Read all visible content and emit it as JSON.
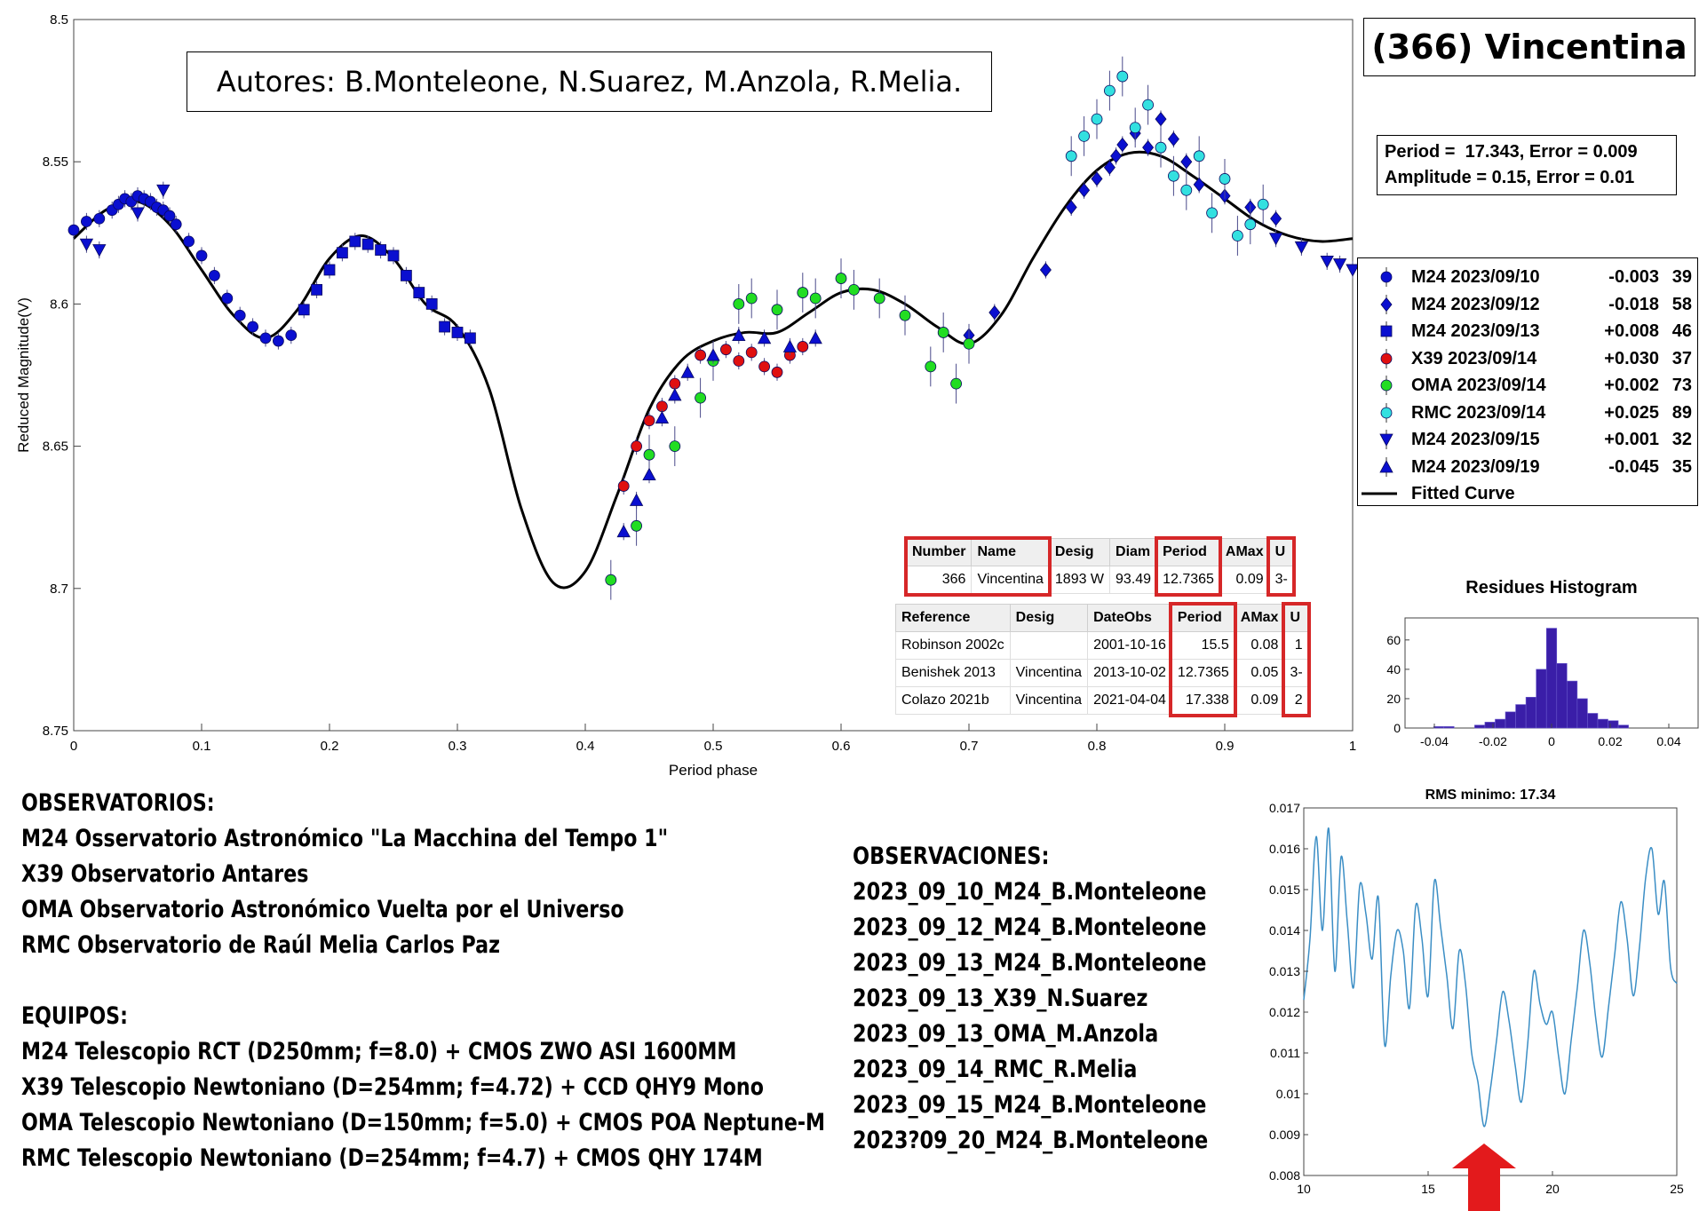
{
  "authors": "Autores: B.Monteleone, N.Suarez, M.Anzola, R.Melia.",
  "asteroid_title": "(366) Vincentina",
  "fit_box": {
    "line1": "Period =  17.343, Error = 0.009",
    "line2": "Amplitude = 0.15, Error = 0.01"
  },
  "legend": [
    {
      "label": "M24 2023/09/10",
      "offset": "-0.003",
      "count": "39",
      "marker": "circle",
      "color": "#0a0fd0"
    },
    {
      "label": "M24 2023/09/12",
      "offset": "-0.018",
      "count": "58",
      "marker": "diamond",
      "color": "#0a0fd0"
    },
    {
      "label": "M24 2023/09/13",
      "offset": "+0.008",
      "count": "46",
      "marker": "square",
      "color": "#0a0fd0"
    },
    {
      "label": "X39 2023/09/14",
      "offset": "+0.030",
      "count": "37",
      "marker": "circle",
      "color": "#e01010"
    },
    {
      "label": "OMA 2023/09/14",
      "offset": "+0.002",
      "count": "73",
      "marker": "circle",
      "color": "#22dd22"
    },
    {
      "label": "RMC 2023/09/14",
      "offset": "+0.025",
      "count": "89",
      "marker": "circle",
      "color": "#33e0e0"
    },
    {
      "label": "M24 2023/09/15",
      "offset": "+0.001",
      "count": "32",
      "marker": "triangle-down",
      "color": "#0a0fd0"
    },
    {
      "label": "M24 2023/09/19",
      "offset": "-0.045",
      "count": "35",
      "marker": "triangle-up",
      "color": "#0a0fd0"
    },
    {
      "label": "Fitted Curve",
      "offset": "",
      "count": "",
      "marker": "line",
      "color": "#000000"
    }
  ],
  "lcdb_table": {
    "headers": [
      "Number",
      "Name",
      "Desig",
      "Diam",
      "Period",
      "AMax",
      "U"
    ],
    "row": [
      "366",
      "Vincentina",
      "1893 W",
      "93.49",
      "12.7365",
      "0.09",
      "3-"
    ]
  },
  "refs_table": {
    "headers": [
      "Reference",
      "Desig",
      "DateObs",
      "Period",
      "AMax",
      "U"
    ],
    "rows": [
      [
        "Robinson 2002c",
        "",
        "2001-10-16",
        "15.5",
        "0.08",
        "1"
      ],
      [
        "Benishek 2013",
        "Vincentina",
        "2013-10-02",
        "12.7365",
        "0.05",
        "3-"
      ],
      [
        "Colazo 2021b",
        "Vincentina",
        "2021-04-04",
        "17.338",
        "0.09",
        "2"
      ]
    ]
  },
  "observatorios": {
    "heading": "OBSERVATORIOS:",
    "lines": [
      "M24 Osservatorio Astronómico \"La Macchina del Tempo 1\"",
      "X39 Observatorio Antares",
      "OMA Observatorio Astronómico Vuelta por el Universo",
      "RMC Observatorio de Raúl Melia Carlos Paz"
    ]
  },
  "equipos": {
    "heading": "EQUIPOS:",
    "lines": [
      "M24 Telescopio RCT (D250mm; f=8.0) + CMOS ZWO ASI 1600MM",
      "X39 Telescopio Newtoniano (D=254mm; f=4.72) + CCD QHY9 Mono",
      "OMA Telescopio Newtoniano (D=150mm; f=5.0) + CMOS POA Neptune-M",
      "RMC Telescopio Newtoniano (D=254mm; f=4.7) + CMOS QHY 174M"
    ]
  },
  "observaciones": {
    "heading": "OBSERVACIONES:",
    "lines": [
      "2023_09_10_M24_B.Monteleone",
      "2023_09_12_M24_B.Monteleone",
      "2023_09_13_M24_B.Monteleone",
      "2023_09_13_X39_N.Suarez",
      "2023_09_13_OMA_M.Anzola",
      "2023_09_14_RMC_R.Melia",
      "2023_09_15_M24_B.Monteleone",
      "2023?09_20_M24_B.Monteleone"
    ]
  },
  "chart_data": [
    {
      "type": "scatter",
      "title": "",
      "xlabel": "Period phase",
      "ylabel": "Reduced Magnitude(V)",
      "xlim": [
        0,
        1
      ],
      "ylim": [
        8.75,
        8.5
      ],
      "y_reversed": true,
      "xticks": [
        "0",
        "0.1",
        "0.2",
        "0.3",
        "0.4",
        "0.5",
        "0.6",
        "0.7",
        "0.8",
        "0.9",
        "1"
      ],
      "yticks": [
        "8.5",
        "8.55",
        "8.6",
        "8.65",
        "8.7",
        "8.75"
      ],
      "fitted_curve": {
        "name": "Fitted Curve",
        "x": [
          0,
          0.025,
          0.05,
          0.075,
          0.1,
          0.125,
          0.15,
          0.175,
          0.2,
          0.225,
          0.25,
          0.275,
          0.3,
          0.325,
          0.35,
          0.375,
          0.4,
          0.425,
          0.45,
          0.475,
          0.5,
          0.525,
          0.55,
          0.575,
          0.6,
          0.625,
          0.65,
          0.675,
          0.7,
          0.725,
          0.75,
          0.775,
          0.8,
          0.825,
          0.85,
          0.875,
          0.9,
          0.925,
          0.95,
          0.975,
          1
        ],
        "y": [
          8.577,
          8.567,
          8.564,
          8.572,
          8.588,
          8.604,
          8.612,
          8.602,
          8.584,
          8.576,
          8.584,
          8.6,
          8.608,
          8.63,
          8.672,
          8.698,
          8.694,
          8.667,
          8.637,
          8.62,
          8.613,
          8.61,
          8.61,
          8.603,
          8.596,
          8.595,
          8.6,
          8.608,
          8.614,
          8.604,
          8.584,
          8.566,
          8.553,
          8.547,
          8.548,
          8.555,
          8.563,
          8.571,
          8.576,
          8.578,
          8.577
        ]
      },
      "series": [
        {
          "name": "M24 2023/09/10",
          "marker": "circle",
          "color": "#0a0fd0",
          "x": [
            0.0,
            0.01,
            0.02,
            0.03,
            0.035,
            0.04,
            0.045,
            0.05,
            0.055,
            0.06,
            0.065,
            0.07,
            0.075,
            0.08,
            0.09,
            0.1,
            0.11,
            0.12,
            0.13,
            0.14,
            0.15,
            0.16,
            0.17
          ],
          "y": [
            8.574,
            8.571,
            8.57,
            8.567,
            8.565,
            8.563,
            8.564,
            8.562,
            8.563,
            8.564,
            8.566,
            8.567,
            8.569,
            8.572,
            8.578,
            8.583,
            8.59,
            8.598,
            8.604,
            8.608,
            8.612,
            8.613,
            8.611
          ]
        },
        {
          "name": "M24 2023/09/12",
          "marker": "diamond",
          "color": "#0a0fd0",
          "x": [
            0.78,
            0.79,
            0.8,
            0.81,
            0.815,
            0.82,
            0.83,
            0.84,
            0.85,
            0.86,
            0.87,
            0.88,
            0.9,
            0.92,
            0.94,
            0.7,
            0.72,
            0.76
          ],
          "y": [
            8.566,
            8.56,
            8.556,
            8.552,
            8.548,
            8.544,
            8.54,
            8.545,
            8.535,
            8.542,
            8.55,
            8.558,
            8.562,
            8.566,
            8.57,
            8.611,
            8.603,
            8.588
          ]
        },
        {
          "name": "M24 2023/09/13",
          "marker": "square",
          "color": "#0a0fd0",
          "x": [
            0.18,
            0.19,
            0.2,
            0.21,
            0.22,
            0.23,
            0.24,
            0.25,
            0.26,
            0.27,
            0.28,
            0.29,
            0.3,
            0.31
          ],
          "y": [
            8.602,
            8.595,
            8.588,
            8.582,
            8.578,
            8.579,
            8.581,
            8.583,
            8.59,
            8.596,
            8.6,
            8.608,
            8.61,
            8.612
          ]
        },
        {
          "name": "X39 2023/09/14",
          "marker": "circle",
          "color": "#e01010",
          "x": [
            0.43,
            0.44,
            0.45,
            0.46,
            0.47,
            0.49,
            0.51,
            0.52,
            0.53,
            0.54,
            0.55,
            0.56,
            0.57
          ],
          "y": [
            8.664,
            8.65,
            8.641,
            8.636,
            8.628,
            8.618,
            8.616,
            8.62,
            8.617,
            8.622,
            8.624,
            8.618,
            8.615
          ]
        },
        {
          "name": "OMA 2023/09/14",
          "marker": "circle",
          "color": "#22dd22",
          "x": [
            0.42,
            0.44,
            0.45,
            0.47,
            0.49,
            0.5,
            0.52,
            0.53,
            0.55,
            0.57,
            0.58,
            0.6,
            0.61,
            0.63,
            0.65,
            0.67,
            0.68,
            0.69,
            0.7
          ],
          "y": [
            8.697,
            8.678,
            8.653,
            8.65,
            8.633,
            8.62,
            8.6,
            8.598,
            8.602,
            8.596,
            8.598,
            8.591,
            8.595,
            8.598,
            8.604,
            8.622,
            8.61,
            8.628,
            8.614
          ]
        },
        {
          "name": "RMC 2023/09/14",
          "marker": "circle",
          "color": "#33e0e0",
          "x": [
            0.78,
            0.79,
            0.8,
            0.81,
            0.82,
            0.83,
            0.84,
            0.85,
            0.86,
            0.87,
            0.88,
            0.89,
            0.9,
            0.91,
            0.92,
            0.93
          ],
          "y": [
            8.548,
            8.541,
            8.535,
            8.525,
            8.52,
            8.538,
            8.53,
            8.545,
            8.555,
            8.56,
            8.548,
            8.568,
            8.556,
            8.576,
            8.572,
            8.565
          ]
        },
        {
          "name": "M24 2023/09/15",
          "marker": "triangle-down",
          "color": "#0a0fd0",
          "x": [
            0.01,
            0.02,
            0.05,
            0.07,
            0.94,
            0.96,
            0.98,
            0.99,
            1.0
          ],
          "y": [
            8.579,
            8.581,
            8.568,
            8.56,
            8.577,
            8.58,
            8.585,
            8.586,
            8.588
          ]
        },
        {
          "name": "M24 2023/09/19",
          "marker": "triangle-up",
          "color": "#0a0fd0",
          "x": [
            0.43,
            0.44,
            0.45,
            0.46,
            0.47,
            0.48,
            0.5,
            0.52,
            0.54,
            0.56,
            0.58
          ],
          "y": [
            8.68,
            8.669,
            8.66,
            8.64,
            8.632,
            8.624,
            8.618,
            8.611,
            8.612,
            8.615,
            8.612
          ]
        }
      ]
    },
    {
      "type": "bar",
      "title": "Residues Histogram",
      "xlim": [
        -0.05,
        0.05
      ],
      "ylim": [
        0,
        75
      ],
      "xticks": [
        "-0.04",
        "-0.02",
        "0",
        "0.02",
        "0.04"
      ],
      "yticks": [
        "0",
        "20",
        "40",
        "60"
      ],
      "bin_width": 0.0035,
      "bin_centers": [
        -0.0385,
        -0.035,
        -0.0245,
        -0.021,
        -0.0175,
        -0.014,
        -0.0105,
        -0.007,
        -0.0035,
        0.0,
        0.0035,
        0.007,
        0.0105,
        0.014,
        0.0175,
        0.021,
        0.0245
      ],
      "values": [
        1,
        1,
        2,
        4,
        6,
        11,
        16,
        21,
        40,
        68,
        44,
        32,
        20,
        10,
        6,
        5,
        2
      ],
      "color": "#3a1ea8"
    },
    {
      "type": "line",
      "title": "RMS minimo: 17.34",
      "xlim": [
        10,
        25
      ],
      "ylim": [
        0.008,
        0.017
      ],
      "xticks": [
        "10",
        "15",
        "20",
        "25"
      ],
      "yticks": [
        "0.008",
        "0.009",
        "0.01",
        "0.011",
        "0.012",
        "0.013",
        "0.014",
        "0.015",
        "0.016",
        "0.017"
      ],
      "color": "#3b8ec5",
      "x": [
        10.0,
        10.25,
        10.5,
        10.75,
        11.0,
        11.25,
        11.5,
        11.75,
        12.0,
        12.25,
        12.5,
        12.75,
        13.0,
        13.25,
        13.5,
        13.75,
        14.0,
        14.25,
        14.5,
        14.75,
        15.0,
        15.25,
        15.5,
        15.75,
        16.0,
        16.25,
        16.5,
        16.75,
        17.0,
        17.25,
        17.5,
        17.75,
        18.0,
        18.25,
        18.5,
        18.75,
        19.0,
        19.25,
        19.5,
        19.75,
        20.0,
        20.25,
        20.5,
        20.75,
        21.0,
        21.25,
        21.5,
        21.75,
        22.0,
        22.25,
        22.5,
        22.75,
        23.0,
        23.25,
        23.5,
        23.75,
        24.0,
        24.25,
        24.5,
        24.75,
        25.0
      ],
      "y": [
        0.0123,
        0.0138,
        0.0163,
        0.014,
        0.0165,
        0.013,
        0.0158,
        0.0142,
        0.0126,
        0.0151,
        0.0144,
        0.0133,
        0.0148,
        0.0112,
        0.0129,
        0.014,
        0.0135,
        0.0121,
        0.0146,
        0.0138,
        0.0124,
        0.0152,
        0.0141,
        0.0129,
        0.0116,
        0.0135,
        0.0127,
        0.011,
        0.0103,
        0.0092,
        0.0101,
        0.0113,
        0.0125,
        0.0118,
        0.0107,
        0.0098,
        0.0112,
        0.013,
        0.0122,
        0.0117,
        0.012,
        0.0109,
        0.01,
        0.0113,
        0.0126,
        0.014,
        0.0132,
        0.0118,
        0.0109,
        0.0121,
        0.0134,
        0.0147,
        0.0138,
        0.0124,
        0.0136,
        0.0153,
        0.016,
        0.0144,
        0.0152,
        0.0131,
        0.0127
      ]
    }
  ]
}
